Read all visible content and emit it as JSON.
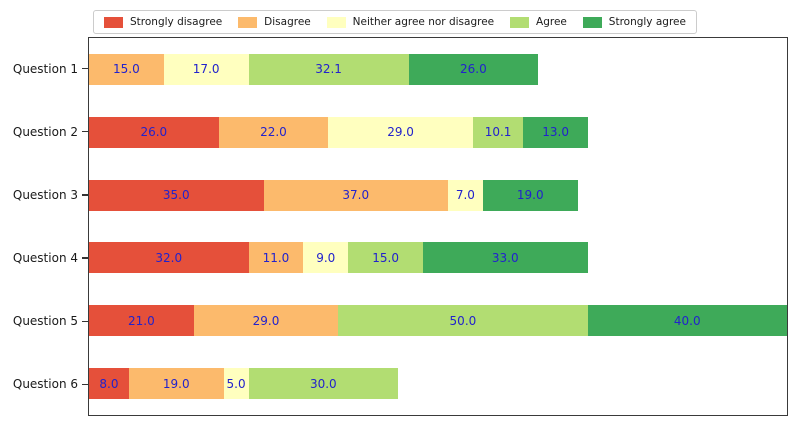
{
  "chart_data": {
    "type": "bar",
    "subtype": "horizontal-stacked-likert",
    "title": "",
    "xlabel": "",
    "ylabel": "",
    "xlim": [
      0,
      140
    ],
    "x_axis_visible": false,
    "grid": false,
    "legend_position": "top",
    "value_label_color": "#2222cc",
    "axis_frame_color": "#3a3a3a",
    "categories": [
      "Question 1",
      "Question 2",
      "Question 3",
      "Question 4",
      "Question 5",
      "Question 6"
    ],
    "series": [
      {
        "name": "Strongly disagree",
        "color": "#e5503a",
        "values": [
          0,
          26.0,
          35.0,
          32.0,
          21.0,
          8.0
        ]
      },
      {
        "name": "Disagree",
        "color": "#fcba6c",
        "values": [
          15.0,
          22.0,
          37.0,
          11.0,
          29.0,
          19.0
        ]
      },
      {
        "name": "Neither agree nor disagree",
        "color": "#ffffbf",
        "values": [
          17.0,
          29.0,
          7.0,
          9.0,
          0,
          5.0
        ]
      },
      {
        "name": "Agree",
        "color": "#b2dd72",
        "values": [
          32.1,
          10.1,
          0,
          15.0,
          50.0,
          30.0
        ]
      },
      {
        "name": "Strongly agree",
        "color": "#3eaa59",
        "values": [
          26.0,
          13.0,
          19.0,
          33.0,
          40.0,
          0
        ]
      }
    ],
    "category_totals": [
      90.1,
      100.1,
      98.0,
      100.0,
      140.0,
      62.0
    ]
  }
}
